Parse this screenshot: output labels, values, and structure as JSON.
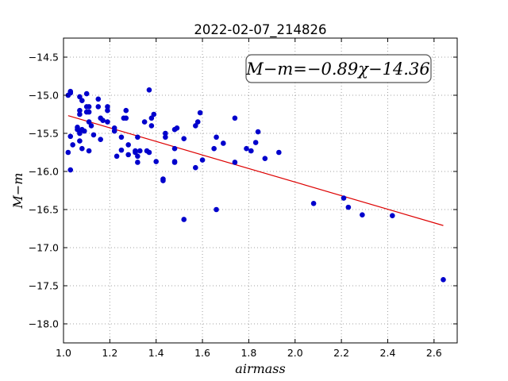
{
  "chart_data": {
    "type": "scatter",
    "title": "2022-02-07_214826",
    "xlabel": "airmass",
    "ylabel": "M−m",
    "xlim": [
      1.0,
      2.7
    ],
    "ylim": [
      -18.25,
      -14.25
    ],
    "y_inverted": false,
    "xticks": [
      "1.0",
      "1.2",
      "1.4",
      "1.6",
      "1.8",
      "2.0",
      "2.2",
      "2.4",
      "2.6"
    ],
    "xtick_values": [
      1.0,
      1.2,
      1.4,
      1.6,
      1.8,
      2.0,
      2.2,
      2.4,
      2.6
    ],
    "yticks": [
      "−14.5",
      "−15.0",
      "−15.5",
      "−16.0",
      "−16.5",
      "−17.0",
      "−17.5",
      "−18.0"
    ],
    "ytick_values": [
      -14.5,
      -15.0,
      -15.5,
      -16.0,
      -16.5,
      -17.0,
      -17.5,
      -18.0
    ],
    "grid": true,
    "annotation": "M−m=−0.89χ−14.36",
    "annotation_position": "top-right",
    "colors": {
      "points": "#0000cc",
      "fit_line": "#dd0000",
      "grid": "#a0a0a0"
    },
    "series": [
      {
        "type": "scatter",
        "points": [
          [
            1.02,
            -15.0
          ],
          [
            1.03,
            -14.97
          ],
          [
            1.03,
            -14.95
          ],
          [
            1.02,
            -15.75
          ],
          [
            1.03,
            -15.54
          ],
          [
            1.04,
            -15.65
          ],
          [
            1.03,
            -15.98
          ],
          [
            1.06,
            -15.42
          ],
          [
            1.06,
            -15.45
          ],
          [
            1.07,
            -15.2
          ],
          [
            1.07,
            -15.25
          ],
          [
            1.07,
            -15.02
          ],
          [
            1.08,
            -15.07
          ],
          [
            1.07,
            -15.48
          ],
          [
            1.07,
            -15.5
          ],
          [
            1.08,
            -15.45
          ],
          [
            1.07,
            -15.6
          ],
          [
            1.08,
            -15.7
          ],
          [
            1.09,
            -15.47
          ],
          [
            1.1,
            -14.98
          ],
          [
            1.1,
            -15.15
          ],
          [
            1.1,
            -15.22
          ],
          [
            1.11,
            -15.15
          ],
          [
            1.11,
            -15.22
          ],
          [
            1.11,
            -15.35
          ],
          [
            1.11,
            -15.73
          ],
          [
            1.12,
            -15.4
          ],
          [
            1.13,
            -15.52
          ],
          [
            1.15,
            -15.05
          ],
          [
            1.15,
            -15.15
          ],
          [
            1.16,
            -15.58
          ],
          [
            1.16,
            -15.3
          ],
          [
            1.17,
            -15.33
          ],
          [
            1.19,
            -15.15
          ],
          [
            1.19,
            -15.2
          ],
          [
            1.19,
            -15.35
          ],
          [
            1.22,
            -15.43
          ],
          [
            1.22,
            -15.47
          ],
          [
            1.23,
            -15.8
          ],
          [
            1.25,
            -15.55
          ],
          [
            1.25,
            -15.72
          ],
          [
            1.26,
            -15.3
          ],
          [
            1.27,
            -15.2
          ],
          [
            1.27,
            -15.3
          ],
          [
            1.28,
            -15.78
          ],
          [
            1.28,
            -15.65
          ],
          [
            1.31,
            -15.73
          ],
          [
            1.31,
            -15.75
          ],
          [
            1.32,
            -15.8
          ],
          [
            1.32,
            -15.55
          ],
          [
            1.32,
            -15.88
          ],
          [
            1.33,
            -15.73
          ],
          [
            1.35,
            -15.35
          ],
          [
            1.36,
            -15.73
          ],
          [
            1.37,
            -14.93
          ],
          [
            1.37,
            -15.75
          ],
          [
            1.38,
            -15.4
          ],
          [
            1.38,
            -15.3
          ],
          [
            1.39,
            -15.25
          ],
          [
            1.4,
            -15.87
          ],
          [
            1.43,
            -16.12
          ],
          [
            1.43,
            -16.1
          ],
          [
            1.44,
            -15.5
          ],
          [
            1.44,
            -15.55
          ],
          [
            1.48,
            -15.45
          ],
          [
            1.48,
            -15.7
          ],
          [
            1.48,
            -15.87
          ],
          [
            1.48,
            -15.88
          ],
          [
            1.49,
            -15.43
          ],
          [
            1.52,
            -15.57
          ],
          [
            1.52,
            -16.63
          ],
          [
            1.57,
            -15.95
          ],
          [
            1.57,
            -15.4
          ],
          [
            1.58,
            -15.35
          ],
          [
            1.59,
            -15.23
          ],
          [
            1.6,
            -15.85
          ],
          [
            1.65,
            -15.7
          ],
          [
            1.66,
            -15.55
          ],
          [
            1.66,
            -16.5
          ],
          [
            1.69,
            -15.63
          ],
          [
            1.74,
            -15.3
          ],
          [
            1.74,
            -15.88
          ],
          [
            1.79,
            -15.7
          ],
          [
            1.81,
            -15.73
          ],
          [
            1.83,
            -15.62
          ],
          [
            1.84,
            -15.48
          ],
          [
            1.87,
            -15.83
          ],
          [
            1.93,
            -15.75
          ],
          [
            2.08,
            -16.42
          ],
          [
            2.21,
            -16.35
          ],
          [
            2.23,
            -16.47
          ],
          [
            2.29,
            -16.57
          ],
          [
            2.42,
            -16.58
          ],
          [
            2.64,
            -17.42
          ]
        ]
      },
      {
        "type": "line",
        "name": "fit",
        "slope": -0.89,
        "intercept": -14.36,
        "x_range": [
          1.02,
          2.64
        ]
      }
    ]
  }
}
